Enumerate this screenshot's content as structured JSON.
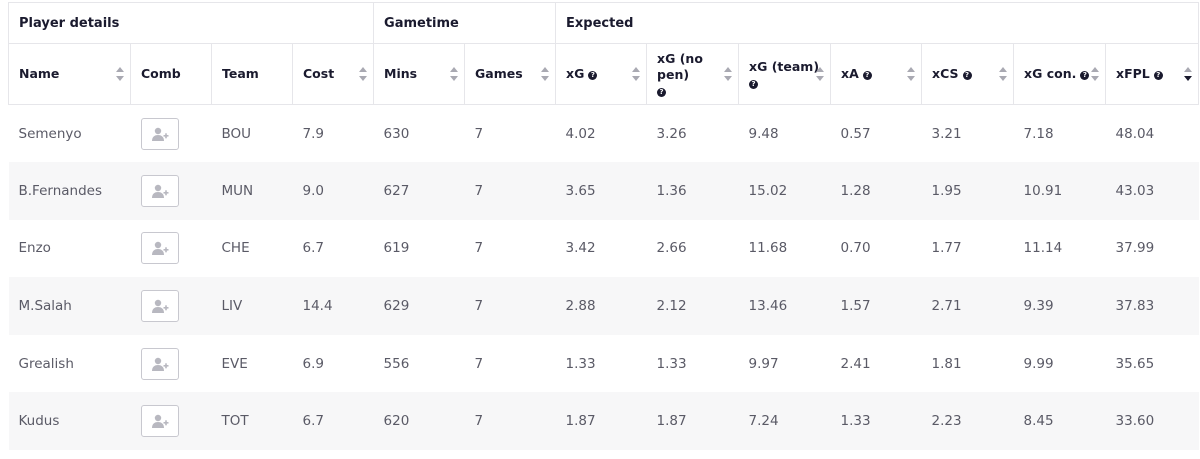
{
  "groups": [
    {
      "label": "Player details"
    },
    {
      "label": "Gametime"
    },
    {
      "label": "Expected"
    }
  ],
  "columns": [
    {
      "key": "name",
      "label": "Name",
      "help": false,
      "sort": "both"
    },
    {
      "key": "comb",
      "label": "Comb",
      "help": false,
      "sort": "none"
    },
    {
      "key": "team",
      "label": "Team",
      "help": false,
      "sort": "none"
    },
    {
      "key": "cost",
      "label": "Cost",
      "help": false,
      "sort": "both"
    },
    {
      "key": "mins",
      "label": "Mins",
      "help": false,
      "sort": "both"
    },
    {
      "key": "games",
      "label": "Games",
      "help": false,
      "sort": "both"
    },
    {
      "key": "xg",
      "label": "xG",
      "help": true,
      "sort": "both"
    },
    {
      "key": "xg_np",
      "label": "xG (no pen)",
      "help": true,
      "sort": "both"
    },
    {
      "key": "xg_team",
      "label": "xG (team)",
      "help": true,
      "sort": "both"
    },
    {
      "key": "xa",
      "label": "xA",
      "help": true,
      "sort": "both"
    },
    {
      "key": "xcs",
      "label": "xCS",
      "help": true,
      "sort": "both"
    },
    {
      "key": "xg_con",
      "label": "xG con.",
      "help": true,
      "sort": "both"
    },
    {
      "key": "xfpl",
      "label": "xFPL",
      "help": true,
      "sort": "desc"
    }
  ],
  "rows": [
    {
      "name": "Semenyo",
      "team": "BOU",
      "cost": "7.9",
      "mins": "630",
      "games": "7",
      "xg": "4.02",
      "xg_np": "3.26",
      "xg_team": "9.48",
      "xa": "0.57",
      "xcs": "3.21",
      "xg_con": "7.18",
      "xfpl": "48.04"
    },
    {
      "name": "B.Fernandes",
      "team": "MUN",
      "cost": "9.0",
      "mins": "627",
      "games": "7",
      "xg": "3.65",
      "xg_np": "1.36",
      "xg_team": "15.02",
      "xa": "1.28",
      "xcs": "1.95",
      "xg_con": "10.91",
      "xfpl": "43.03"
    },
    {
      "name": "Enzo",
      "team": "CHE",
      "cost": "6.7",
      "mins": "619",
      "games": "7",
      "xg": "3.42",
      "xg_np": "2.66",
      "xg_team": "11.68",
      "xa": "0.70",
      "xcs": "1.77",
      "xg_con": "11.14",
      "xfpl": "37.99"
    },
    {
      "name": "M.Salah",
      "team": "LIV",
      "cost": "14.4",
      "mins": "629",
      "games": "7",
      "xg": "2.88",
      "xg_np": "2.12",
      "xg_team": "13.46",
      "xa": "1.57",
      "xcs": "2.71",
      "xg_con": "9.39",
      "xfpl": "37.83"
    },
    {
      "name": "Grealish",
      "team": "EVE",
      "cost": "6.9",
      "mins": "556",
      "games": "7",
      "xg": "1.33",
      "xg_np": "1.33",
      "xg_team": "9.97",
      "xa": "2.41",
      "xcs": "1.81",
      "xg_con": "9.99",
      "xfpl": "35.65"
    },
    {
      "name": "Kudus",
      "team": "TOT",
      "cost": "6.7",
      "mins": "620",
      "games": "7",
      "xg": "1.87",
      "xg_np": "1.87",
      "xg_team": "7.24",
      "xa": "1.33",
      "xcs": "2.23",
      "xg_con": "8.45",
      "xfpl": "33.60"
    }
  ],
  "icons": {
    "comb_button": "add-user-icon",
    "help": "question-circle-icon",
    "sort": "sort-arrows-icon"
  },
  "colors": {
    "header_text": "#1a1a2e",
    "cell_text": "#5a5a66",
    "stripe": "#f7f7f8",
    "border": "#e6e6ea"
  }
}
